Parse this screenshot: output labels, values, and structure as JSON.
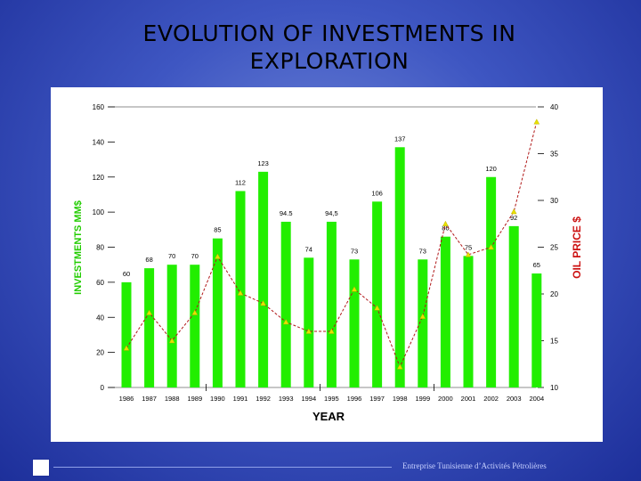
{
  "page": {
    "title_line1": "EVOLUTION OF INVESTMENTS IN",
    "title_line2": "EXPLORATION",
    "footer_text": "Entreprise Tunisienne d’Activités Pétrolières"
  },
  "chart_data": {
    "type": "bar+line",
    "title": "EVOLUTION OF INVESTMENTS IN EXPLORATION",
    "xlabel": "YEAR",
    "ylabel_left": "INVESTMENTS MM$",
    "ylabel_right": "OIL PRICE $",
    "categories": [
      "1986",
      "1987",
      "1988",
      "1989",
      "1990",
      "1991",
      "1992",
      "1993",
      "1994",
      "1995",
      "1996",
      "1997",
      "1998",
      "1999",
      "2000",
      "2001",
      "2002",
      "2003",
      "2004"
    ],
    "series": [
      {
        "name": "Investments (MM$)",
        "axis": "left",
        "kind": "bar",
        "color": "#22ee00",
        "values": [
          60,
          68,
          70,
          70,
          85,
          112,
          123,
          94.5,
          74,
          94.5,
          73,
          106,
          137,
          73,
          86,
          75,
          120,
          92,
          65
        ],
        "labels": [
          "60",
          "68",
          "70",
          "70",
          "85",
          "112",
          "123",
          "94.5",
          "74",
          "94,5",
          "73",
          "106",
          "137",
          "73",
          "86",
          "75",
          "120",
          "92",
          "65"
        ]
      },
      {
        "name": "Oil price ($)",
        "axis": "right",
        "kind": "line",
        "color": "#b01818",
        "marker_color": "#e8e000",
        "values": [
          14.2,
          18,
          15,
          18,
          24,
          20.1,
          19,
          17,
          16,
          16,
          20.5,
          18.5,
          12.2,
          17.6,
          27.5,
          24.2,
          25,
          28.8,
          38.4
        ]
      }
    ],
    "ylim_left": [
      0,
      160
    ],
    "yticks_left": [
      "0",
      "20",
      "40",
      "60",
      "80",
      "100",
      "120",
      "140",
      "160"
    ],
    "ylim_right": [
      10,
      40
    ],
    "yticks_right": [
      "10",
      "15",
      "20",
      "25",
      "30",
      "35",
      "40"
    ],
    "colors": {
      "axis_left": "#22cc00",
      "axis_right": "#cc1111"
    }
  }
}
